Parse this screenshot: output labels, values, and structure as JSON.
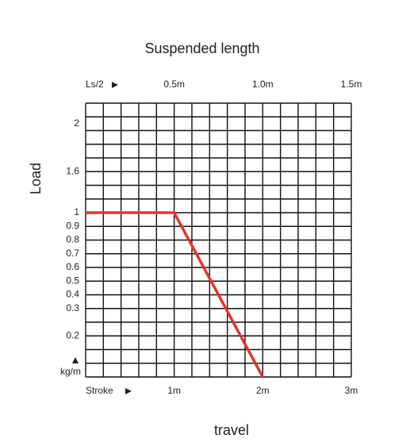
{
  "chart_data": {
    "type": "line",
    "title": "Suspended length",
    "ylabel": "Load",
    "xlabel": "travel",
    "y_unit": "kg/m",
    "x_axis_name": "Stroke",
    "x2_axis_name": "Ls/2",
    "x": [
      0,
      1,
      2
    ],
    "series": [
      {
        "name": "Load",
        "color": "#e2362a",
        "values": [
          1,
          1,
          0
        ]
      }
    ],
    "xlim": [
      0,
      3
    ],
    "xticks": [
      {
        "value": 1,
        "label": "1m"
      },
      {
        "value": 2,
        "label": "2m"
      },
      {
        "value": 3,
        "label": "3m"
      }
    ],
    "x2lim": [
      0,
      1.5
    ],
    "x2ticks": [
      {
        "value": 0.5,
        "label": "0.5m"
      },
      {
        "value": 1.0,
        "label": "1.0m"
      },
      {
        "value": 1.5,
        "label": "1.5m"
      }
    ],
    "ylim": [
      0,
      2.2
    ],
    "yticks": [
      0.2,
      0.3,
      0.4,
      0.5,
      0.6,
      0.7,
      0.8,
      0.9,
      1,
      1.6,
      2
    ],
    "grid": true
  }
}
